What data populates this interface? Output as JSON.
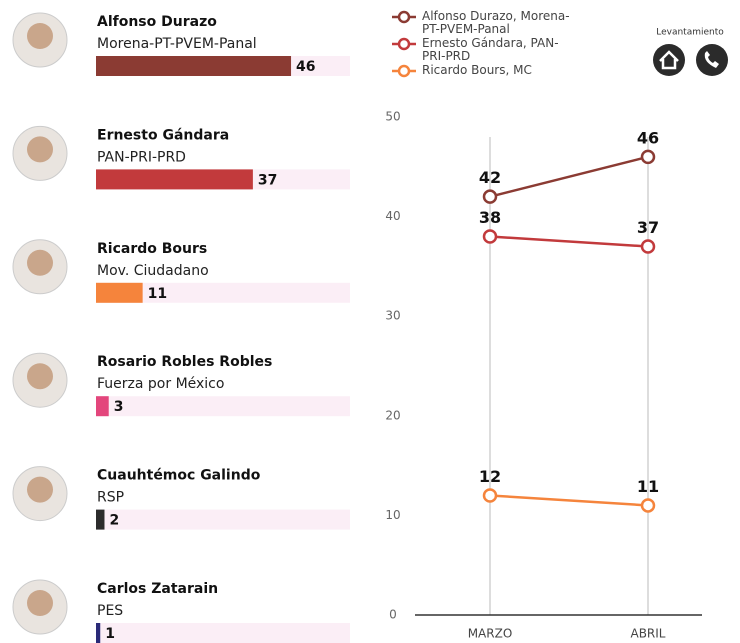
{
  "chart_data": [
    {
      "type": "bar",
      "categories": [
        "Alfonso Durazo",
        "Ernesto Gándara",
        "Ricardo Bours",
        "Rosario Robles Robles",
        "Cuauhtémoc Galindo",
        "Carlos Zatarain"
      ],
      "parties": [
        "Morena-PT-PVEM-Panal",
        "PAN-PRI-PRD",
        "Mov. Ciudadano",
        "Fuerza por México",
        "RSP",
        "PES"
      ],
      "values": [
        46,
        37,
        11,
        3,
        2,
        1
      ],
      "colors": [
        "#8b3b33",
        "#c23a3c",
        "#f5843c",
        "#e3467c",
        "#2c2c2c",
        "#2a2a78"
      ]
    },
    {
      "type": "line",
      "categories": [
        "MARZO",
        "ABRIL"
      ],
      "series": [
        {
          "name": "Alfonso Durazo, Morena-PT-PVEM-Panal",
          "color": "#8b3b33",
          "values": [
            42,
            46
          ]
        },
        {
          "name": "Ernesto Gándara, PAN-PRI-PRD",
          "color": "#c23a3c",
          "values": [
            38,
            37
          ]
        },
        {
          "name": "Ricardo Bours, MC",
          "color": "#f5843c",
          "values": [
            12,
            11
          ]
        }
      ],
      "ylim": [
        0,
        50
      ],
      "yticks": [
        0,
        10,
        20,
        30,
        40,
        50
      ],
      "legend": "top",
      "note": "Levantamiento"
    }
  ]
}
